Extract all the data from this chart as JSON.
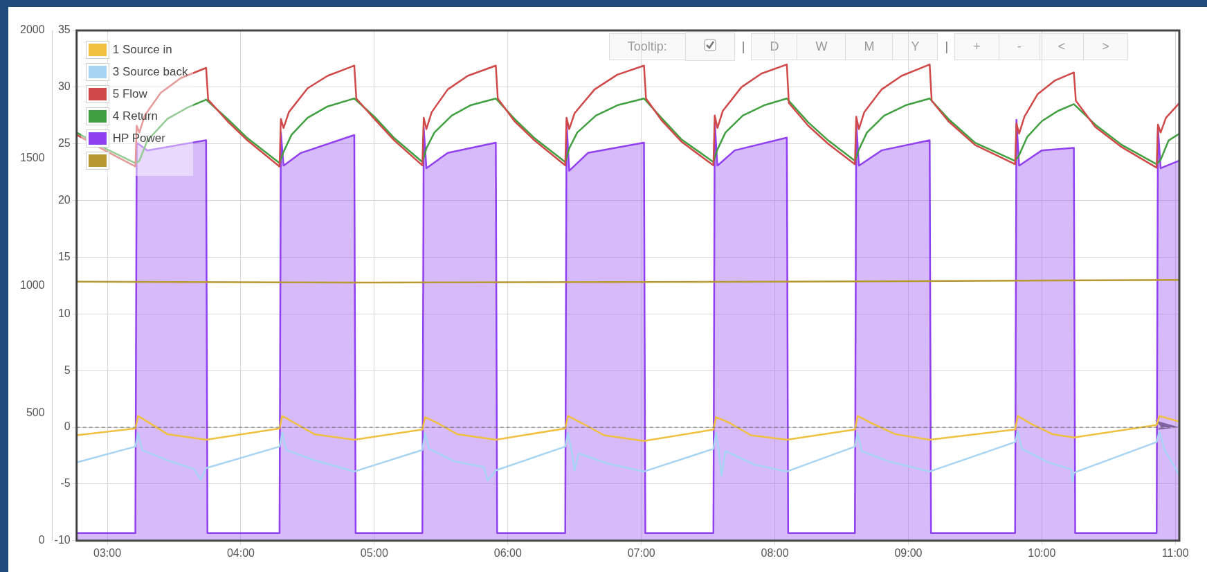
{
  "chart_data": {
    "type": "line",
    "xlim": [
      2.77,
      11.03
    ],
    "xticks": [
      {
        "value": 3,
        "label": "03:00"
      },
      {
        "value": 4,
        "label": "04:00"
      },
      {
        "value": 5,
        "label": "05:00"
      },
      {
        "value": 6,
        "label": "06:00"
      },
      {
        "value": 7,
        "label": "07:00"
      },
      {
        "value": 8,
        "label": "08:00"
      },
      {
        "value": 9,
        "label": "09:00"
      },
      {
        "value": 10,
        "label": "10:00"
      },
      {
        "value": 11,
        "label": "11:00"
      }
    ],
    "ylim": [
      -10,
      35
    ],
    "yticks": [
      -10,
      -5,
      0,
      5,
      10,
      15,
      20,
      25,
      30,
      35
    ],
    "y2lim": [
      0,
      2000
    ],
    "y2ticks": [
      0,
      500,
      1000,
      1500,
      2000
    ],
    "grid": true,
    "legend": "top left",
    "ref_lines": [
      {
        "axis": "y",
        "value": 0,
        "color": "#666666",
        "line_style": "dashed"
      }
    ],
    "annotations": [
      "Tooltip:",
      "|",
      "D",
      "W",
      "M",
      "Y",
      "|",
      "+",
      "-",
      "<",
      ">"
    ],
    "series": [
      {
        "name": "1 Source in",
        "color": "#f0c040",
        "type": "line",
        "x": [
          2.77,
          3.21,
          3.23,
          3.3,
          3.45,
          3.74,
          4.29,
          4.31,
          4.4,
          4.55,
          4.85,
          5.36,
          5.38,
          5.47,
          5.62,
          5.91,
          6.43,
          6.45,
          6.55,
          6.72,
          7.02,
          7.54,
          7.56,
          7.66,
          7.82,
          8.09,
          8.6,
          8.62,
          8.72,
          8.9,
          9.16,
          9.8,
          9.82,
          9.92,
          10.08,
          10.24,
          10.86,
          10.88,
          11.03
        ],
        "values": [
          -0.7,
          -0.1,
          1.0,
          0.5,
          -0.6,
          -1.1,
          -0.1,
          1.0,
          0.4,
          -0.6,
          -1.1,
          -0.2,
          0.9,
          0.4,
          -0.6,
          -1.1,
          -0.1,
          1.0,
          0.4,
          -0.7,
          -1.2,
          -0.2,
          0.9,
          0.4,
          -0.7,
          -1.1,
          -0.2,
          1.0,
          0.4,
          -0.6,
          -1.1,
          -0.2,
          1.0,
          0.3,
          -0.6,
          -0.9,
          0.2,
          1.0,
          0.5
        ]
      },
      {
        "name": "3 Source back",
        "color": "#a8d4f4",
        "type": "line",
        "x": [
          2.77,
          3.21,
          3.23,
          3.26,
          3.45,
          3.65,
          3.7,
          3.74,
          4.29,
          4.31,
          4.34,
          4.55,
          4.85,
          5.36,
          5.38,
          5.41,
          5.6,
          5.82,
          5.85,
          5.91,
          6.43,
          6.45,
          6.48,
          6.5,
          6.53,
          6.75,
          7.02,
          7.54,
          7.56,
          7.58,
          7.6,
          7.63,
          7.85,
          8.09,
          8.6,
          8.62,
          8.65,
          8.85,
          9.16,
          9.8,
          9.82,
          9.85,
          10.05,
          10.22,
          10.23,
          10.24,
          10.86,
          10.88,
          10.92,
          11.03
        ],
        "values": [
          -3.1,
          -1.7,
          -0.5,
          -2.0,
          -2.9,
          -3.7,
          -4.6,
          -3.6,
          -1.7,
          -0.5,
          -2.0,
          -2.9,
          -3.9,
          -2.0,
          -0.5,
          -1.9,
          -3.0,
          -3.5,
          -4.7,
          -3.8,
          -1.7,
          -0.5,
          -2.2,
          -3.8,
          -2.3,
          -3.2,
          -3.9,
          -1.9,
          -0.5,
          -2.0,
          -4.3,
          -2.1,
          -3.3,
          -3.9,
          -1.7,
          -0.5,
          -2.1,
          -3.0,
          -3.9,
          -1.3,
          -0.4,
          -1.9,
          -3.1,
          -3.7,
          -4.8,
          -4.0,
          -1.3,
          -0.4,
          -2.0,
          -4.2
        ]
      },
      {
        "name": "5 Flow",
        "color": "#d04848",
        "type": "line",
        "x": [
          2.77,
          3.0,
          3.21,
          3.22,
          3.24,
          3.28,
          3.4,
          3.55,
          3.74,
          3.755,
          3.9,
          4.05,
          4.29,
          4.3,
          4.32,
          4.36,
          4.5,
          4.65,
          4.85,
          4.865,
          5.0,
          5.15,
          5.36,
          5.37,
          5.39,
          5.43,
          5.55,
          5.7,
          5.91,
          5.925,
          6.05,
          6.2,
          6.43,
          6.44,
          6.46,
          6.5,
          6.65,
          6.82,
          7.02,
          7.035,
          7.15,
          7.3,
          7.54,
          7.55,
          7.57,
          7.61,
          7.75,
          7.9,
          8.09,
          8.105,
          8.25,
          8.4,
          8.6,
          8.61,
          8.63,
          8.67,
          8.8,
          8.95,
          9.16,
          9.175,
          9.3,
          9.5,
          9.8,
          9.81,
          9.83,
          9.87,
          9.97,
          10.1,
          10.24,
          10.255,
          10.4,
          10.6,
          10.86,
          10.87,
          10.89,
          10.93,
          11.03
        ],
        "values": [
          25.8,
          24.3,
          23.0,
          26.6,
          26.0,
          27.5,
          29.5,
          30.8,
          31.7,
          28.9,
          27.0,
          25.3,
          23.0,
          27.2,
          26.4,
          27.8,
          29.9,
          31.0,
          31.9,
          29.0,
          27.2,
          25.3,
          23.1,
          27.3,
          26.3,
          27.8,
          29.8,
          31.0,
          31.9,
          29.0,
          27.0,
          25.3,
          23.1,
          27.3,
          26.3,
          27.7,
          29.8,
          31.1,
          31.9,
          29.0,
          27.1,
          25.2,
          23.1,
          27.5,
          26.4,
          27.9,
          30.0,
          31.2,
          32.0,
          28.6,
          26.6,
          25.0,
          23.2,
          27.4,
          26.3,
          27.8,
          29.8,
          31.0,
          32.0,
          28.8,
          27.0,
          24.9,
          23.2,
          26.8,
          25.9,
          27.4,
          29.4,
          30.6,
          31.3,
          28.8,
          26.5,
          24.7,
          22.9,
          26.7,
          26.0,
          27.3,
          28.6
        ]
      },
      {
        "name": "4 Return",
        "color": "#40a040",
        "type": "line",
        "x": [
          2.77,
          3.0,
          3.21,
          3.24,
          3.3,
          3.45,
          3.6,
          3.74,
          3.9,
          4.05,
          4.29,
          4.32,
          4.38,
          4.5,
          4.65,
          4.85,
          5.0,
          5.15,
          5.36,
          5.39,
          5.45,
          5.58,
          5.72,
          5.91,
          6.05,
          6.2,
          6.43,
          6.46,
          6.52,
          6.66,
          6.82,
          7.02,
          7.15,
          7.3,
          7.54,
          7.57,
          7.63,
          7.76,
          7.92,
          8.09,
          8.25,
          8.4,
          8.6,
          8.63,
          8.69,
          8.82,
          8.98,
          9.16,
          9.3,
          9.5,
          9.8,
          9.83,
          9.89,
          10.0,
          10.12,
          10.24,
          10.4,
          10.6,
          10.86,
          10.89,
          10.95,
          11.03
        ],
        "values": [
          26.0,
          24.5,
          23.3,
          23.5,
          25.3,
          27.2,
          28.2,
          28.9,
          27.2,
          25.5,
          23.3,
          24.3,
          25.8,
          27.3,
          28.3,
          29.0,
          27.4,
          25.5,
          23.4,
          24.6,
          26.0,
          27.5,
          28.4,
          29.0,
          27.2,
          25.5,
          23.4,
          24.6,
          26.0,
          27.5,
          28.4,
          29.0,
          27.3,
          25.4,
          23.4,
          24.5,
          26.0,
          27.5,
          28.4,
          29.0,
          26.9,
          25.3,
          23.5,
          24.5,
          26.0,
          27.5,
          28.4,
          29.0,
          27.2,
          25.1,
          23.5,
          24.0,
          25.6,
          27.0,
          27.9,
          28.5,
          26.7,
          24.9,
          23.2,
          23.6,
          25.3,
          25.9
        ]
      },
      {
        "name": "HP Power",
        "color": "#9040f0",
        "type": "area",
        "axis": "y2",
        "x": [
          2.77,
          3.21,
          3.22,
          3.3,
          3.74,
          3.75,
          4.29,
          4.3,
          4.32,
          4.45,
          4.85,
          4.86,
          5.36,
          5.37,
          5.39,
          5.55,
          5.91,
          5.92,
          6.43,
          6.44,
          6.46,
          6.6,
          7.02,
          7.03,
          7.54,
          7.55,
          7.57,
          7.7,
          8.09,
          8.1,
          8.6,
          8.61,
          8.63,
          8.8,
          9.16,
          9.17,
          9.8,
          9.81,
          9.83,
          10.0,
          10.24,
          10.25,
          10.86,
          10.87,
          10.89,
          11.03
        ],
        "values": [
          30,
          30,
          1560,
          1530,
          1570,
          30,
          30,
          1600,
          1470,
          1520,
          1590,
          30,
          30,
          1620,
          1460,
          1520,
          1560,
          30,
          30,
          1640,
          1450,
          1520,
          1560,
          30,
          30,
          1640,
          1470,
          1530,
          1580,
          30,
          30,
          1640,
          1470,
          1530,
          1570,
          30,
          30,
          1650,
          1470,
          1530,
          1540,
          30,
          30,
          1620,
          1460,
          1490
        ]
      },
      {
        "color": "#b89830",
        "type": "line",
        "axis": "y2",
        "x": [
          2.77,
          5.0,
          8.0,
          11.03
        ],
        "values": [
          1015,
          1012,
          1015,
          1022
        ]
      }
    ]
  }
}
